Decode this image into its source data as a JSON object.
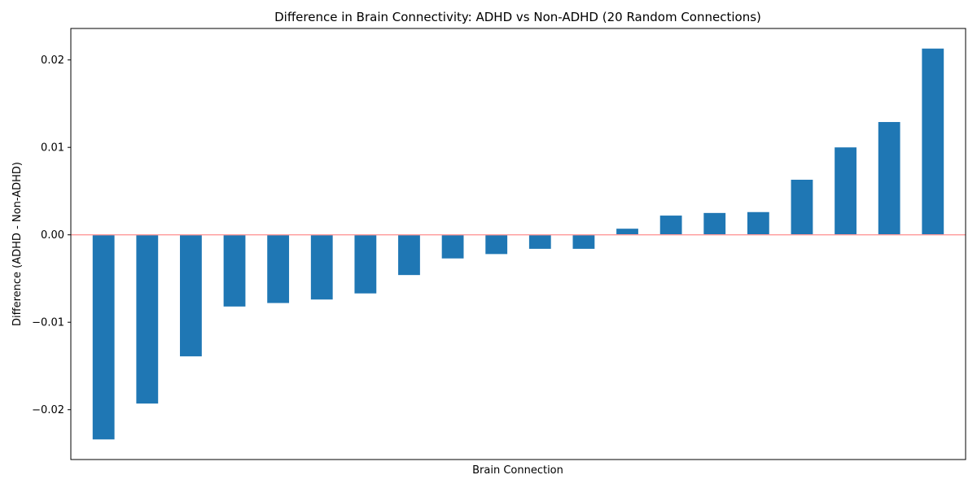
{
  "chart_data": {
    "type": "bar",
    "title": "Difference in Brain Connectivity: ADHD vs Non-ADHD (20 Random Connections)",
    "xlabel": "Brain Connection",
    "ylabel": "Difference (ADHD - Non-ADHD)",
    "ylim": [
      -0.0257,
      0.0236
    ],
    "yticks": [
      -0.02,
      -0.01,
      0.0,
      0.01,
      0.02
    ],
    "ytick_labels": [
      "−0.02",
      "−0.01",
      "0.00",
      "0.01",
      "0.02"
    ],
    "values": [
      -0.0234,
      -0.0193,
      -0.0139,
      -0.0082,
      -0.0078,
      -0.0074,
      -0.0067,
      -0.0046,
      -0.0027,
      -0.0022,
      -0.0016,
      -0.0016,
      0.0007,
      0.0022,
      0.0025,
      0.0026,
      0.0063,
      0.01,
      0.0129,
      0.0213
    ],
    "bar_color": "#1f77b4",
    "zero_line_color": "#ff9999",
    "grid": false,
    "legend": "none"
  }
}
